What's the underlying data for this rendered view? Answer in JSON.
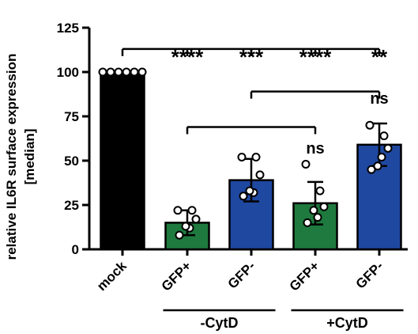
{
  "chart_data": {
    "type": "bar",
    "ylabel": "relative IL6R surface expression [median]",
    "ylabel_lines": [
      "relative IL6R surface expression",
      "[median]"
    ],
    "ylim": [
      0,
      125
    ],
    "yticks": [
      "0",
      "25",
      "50",
      "75",
      "100",
      "125"
    ],
    "categories": [
      "mock",
      "GFP+",
      "GFP-",
      "GFP+",
      "GFP-"
    ],
    "values": [
      100,
      15,
      39,
      26,
      59
    ],
    "errors": [
      0,
      7,
      12,
      12,
      12
    ],
    "bar_colors": [
      "#000000",
      "#1e7a3e",
      "#1f48a0",
      "#1e7a3e",
      "#1f48a0"
    ],
    "points": [
      [
        100,
        100,
        100,
        100,
        100,
        100
      ],
      [
        22,
        22,
        17,
        12,
        8,
        13
      ],
      [
        52,
        52,
        42,
        32,
        30,
        33
      ],
      [
        48,
        33,
        24,
        18,
        15,
        22
      ],
      [
        70,
        64,
        57,
        52,
        45,
        47
      ]
    ],
    "groups": [
      {
        "label": "-CytD",
        "from": 1,
        "to": 2
      },
      {
        "label": "+CytD",
        "from": 3,
        "to": 4
      }
    ],
    "significance": [
      {
        "label": "****",
        "bar": 1
      },
      {
        "label": "***",
        "bar": 2
      },
      {
        "label": "****",
        "bar": 3
      },
      {
        "label": "**",
        "bar": 4
      },
      {
        "label": "ns",
        "bar": 3
      },
      {
        "label": "ns",
        "bar": 4
      }
    ],
    "brackets": [
      {
        "from": 0,
        "to": [
          1,
          2,
          3,
          4
        ],
        "level": 113
      },
      {
        "from": 2,
        "to": [
          4
        ],
        "level": 89
      },
      {
        "from": 1,
        "to": [
          3
        ],
        "level": 69
      }
    ]
  }
}
